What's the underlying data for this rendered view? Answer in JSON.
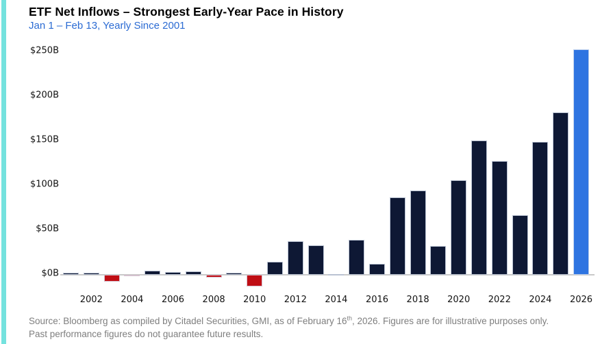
{
  "accent_color": "#74E2DE",
  "header": {
    "title": "ETF Net Inflows – Strongest Early-Year Pace in History",
    "subtitle": "Jan 1 – Feb 13, Yearly Since 2001",
    "title_color": "#000000",
    "subtitle_color": "#2B6BD3"
  },
  "chart_data": {
    "type": "bar",
    "title": "ETF Net Inflows – Strongest Early-Year Pace in History",
    "subtitle": "Jan 1 – Feb 13, Yearly Since 2001",
    "xlabel": "",
    "ylabel": "",
    "ylim": [
      -15,
      255
    ],
    "grid": false,
    "legend": false,
    "categories": [
      2001,
      2002,
      2003,
      2004,
      2005,
      2006,
      2007,
      2008,
      2009,
      2010,
      2011,
      2012,
      2013,
      2014,
      2015,
      2016,
      2017,
      2018,
      2019,
      2020,
      2021,
      2022,
      2023,
      2024,
      2025,
      2026
    ],
    "values": [
      2,
      2,
      -8,
      -1,
      5,
      3,
      4,
      -3,
      2,
      -13,
      15,
      38,
      33,
      1,
      39,
      12,
      87,
      95,
      32,
      106,
      151,
      128,
      67,
      149,
      182,
      253
    ],
    "units": "USD billions",
    "y_ticks": [
      {
        "label": "$0B",
        "value": 0
      },
      {
        "label": "$50B",
        "value": 50
      },
      {
        "label": "$100B",
        "value": 100
      },
      {
        "label": "$150B",
        "value": 150
      },
      {
        "label": "$200B",
        "value": 200
      },
      {
        "label": "$250B",
        "value": 250
      }
    ],
    "x_tick_labels": [
      "2002",
      "2004",
      "2006",
      "2008",
      "2010",
      "2012",
      "2014",
      "2016",
      "2018",
      "2020",
      "2022",
      "2024",
      "2026"
    ],
    "bar_color": "#0E1834",
    "negative_color": "#C00E14",
    "highlight_color": "#2E74E1",
    "highlight_year": 2026
  },
  "source": {
    "line1_pre": "Source: Bloomberg as compiled by Citadel Securities, GMI, as of February 16",
    "line1_sup": "th",
    "line1_post": ", 2026. Figures are for illustrative purposes only.",
    "line2": "Past performance figures do not guarantee future results.",
    "color": "#7E7E7E"
  }
}
